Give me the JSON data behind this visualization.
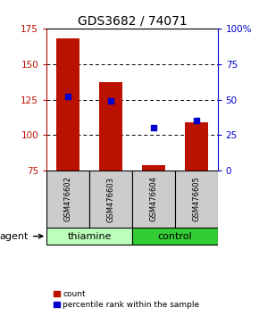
{
  "title": "GDS3682 / 74071",
  "samples": [
    "GSM476602",
    "GSM476603",
    "GSM476604",
    "GSM476605"
  ],
  "bar_bottoms": [
    75,
    75,
    75,
    75
  ],
  "bar_tops": [
    168,
    137,
    79,
    109
  ],
  "percentile_pct": [
    52,
    49,
    30,
    35
  ],
  "ylim_left": [
    75,
    175
  ],
  "ylim_right": [
    0,
    100
  ],
  "yticks_left": [
    75,
    100,
    125,
    150,
    175
  ],
  "yticks_right": [
    0,
    25,
    50,
    75,
    100
  ],
  "ytick_labels_right": [
    "0",
    "25",
    "50",
    "75",
    "100%"
  ],
  "bar_color": "#bb1100",
  "blue_color": "#0000cc",
  "agent_groups": [
    {
      "label": "thiamine",
      "color": "#bbffbb",
      "span": [
        0,
        2
      ]
    },
    {
      "label": "control",
      "color": "#33cc33",
      "span": [
        2,
        4
      ]
    }
  ],
  "agent_label": "agent",
  "legend_count": "count",
  "legend_pct": "percentile rank within the sample",
  "sample_box_color": "#cccccc",
  "bar_width": 0.55,
  "figsize": [
    2.9,
    3.54
  ],
  "dpi": 100
}
